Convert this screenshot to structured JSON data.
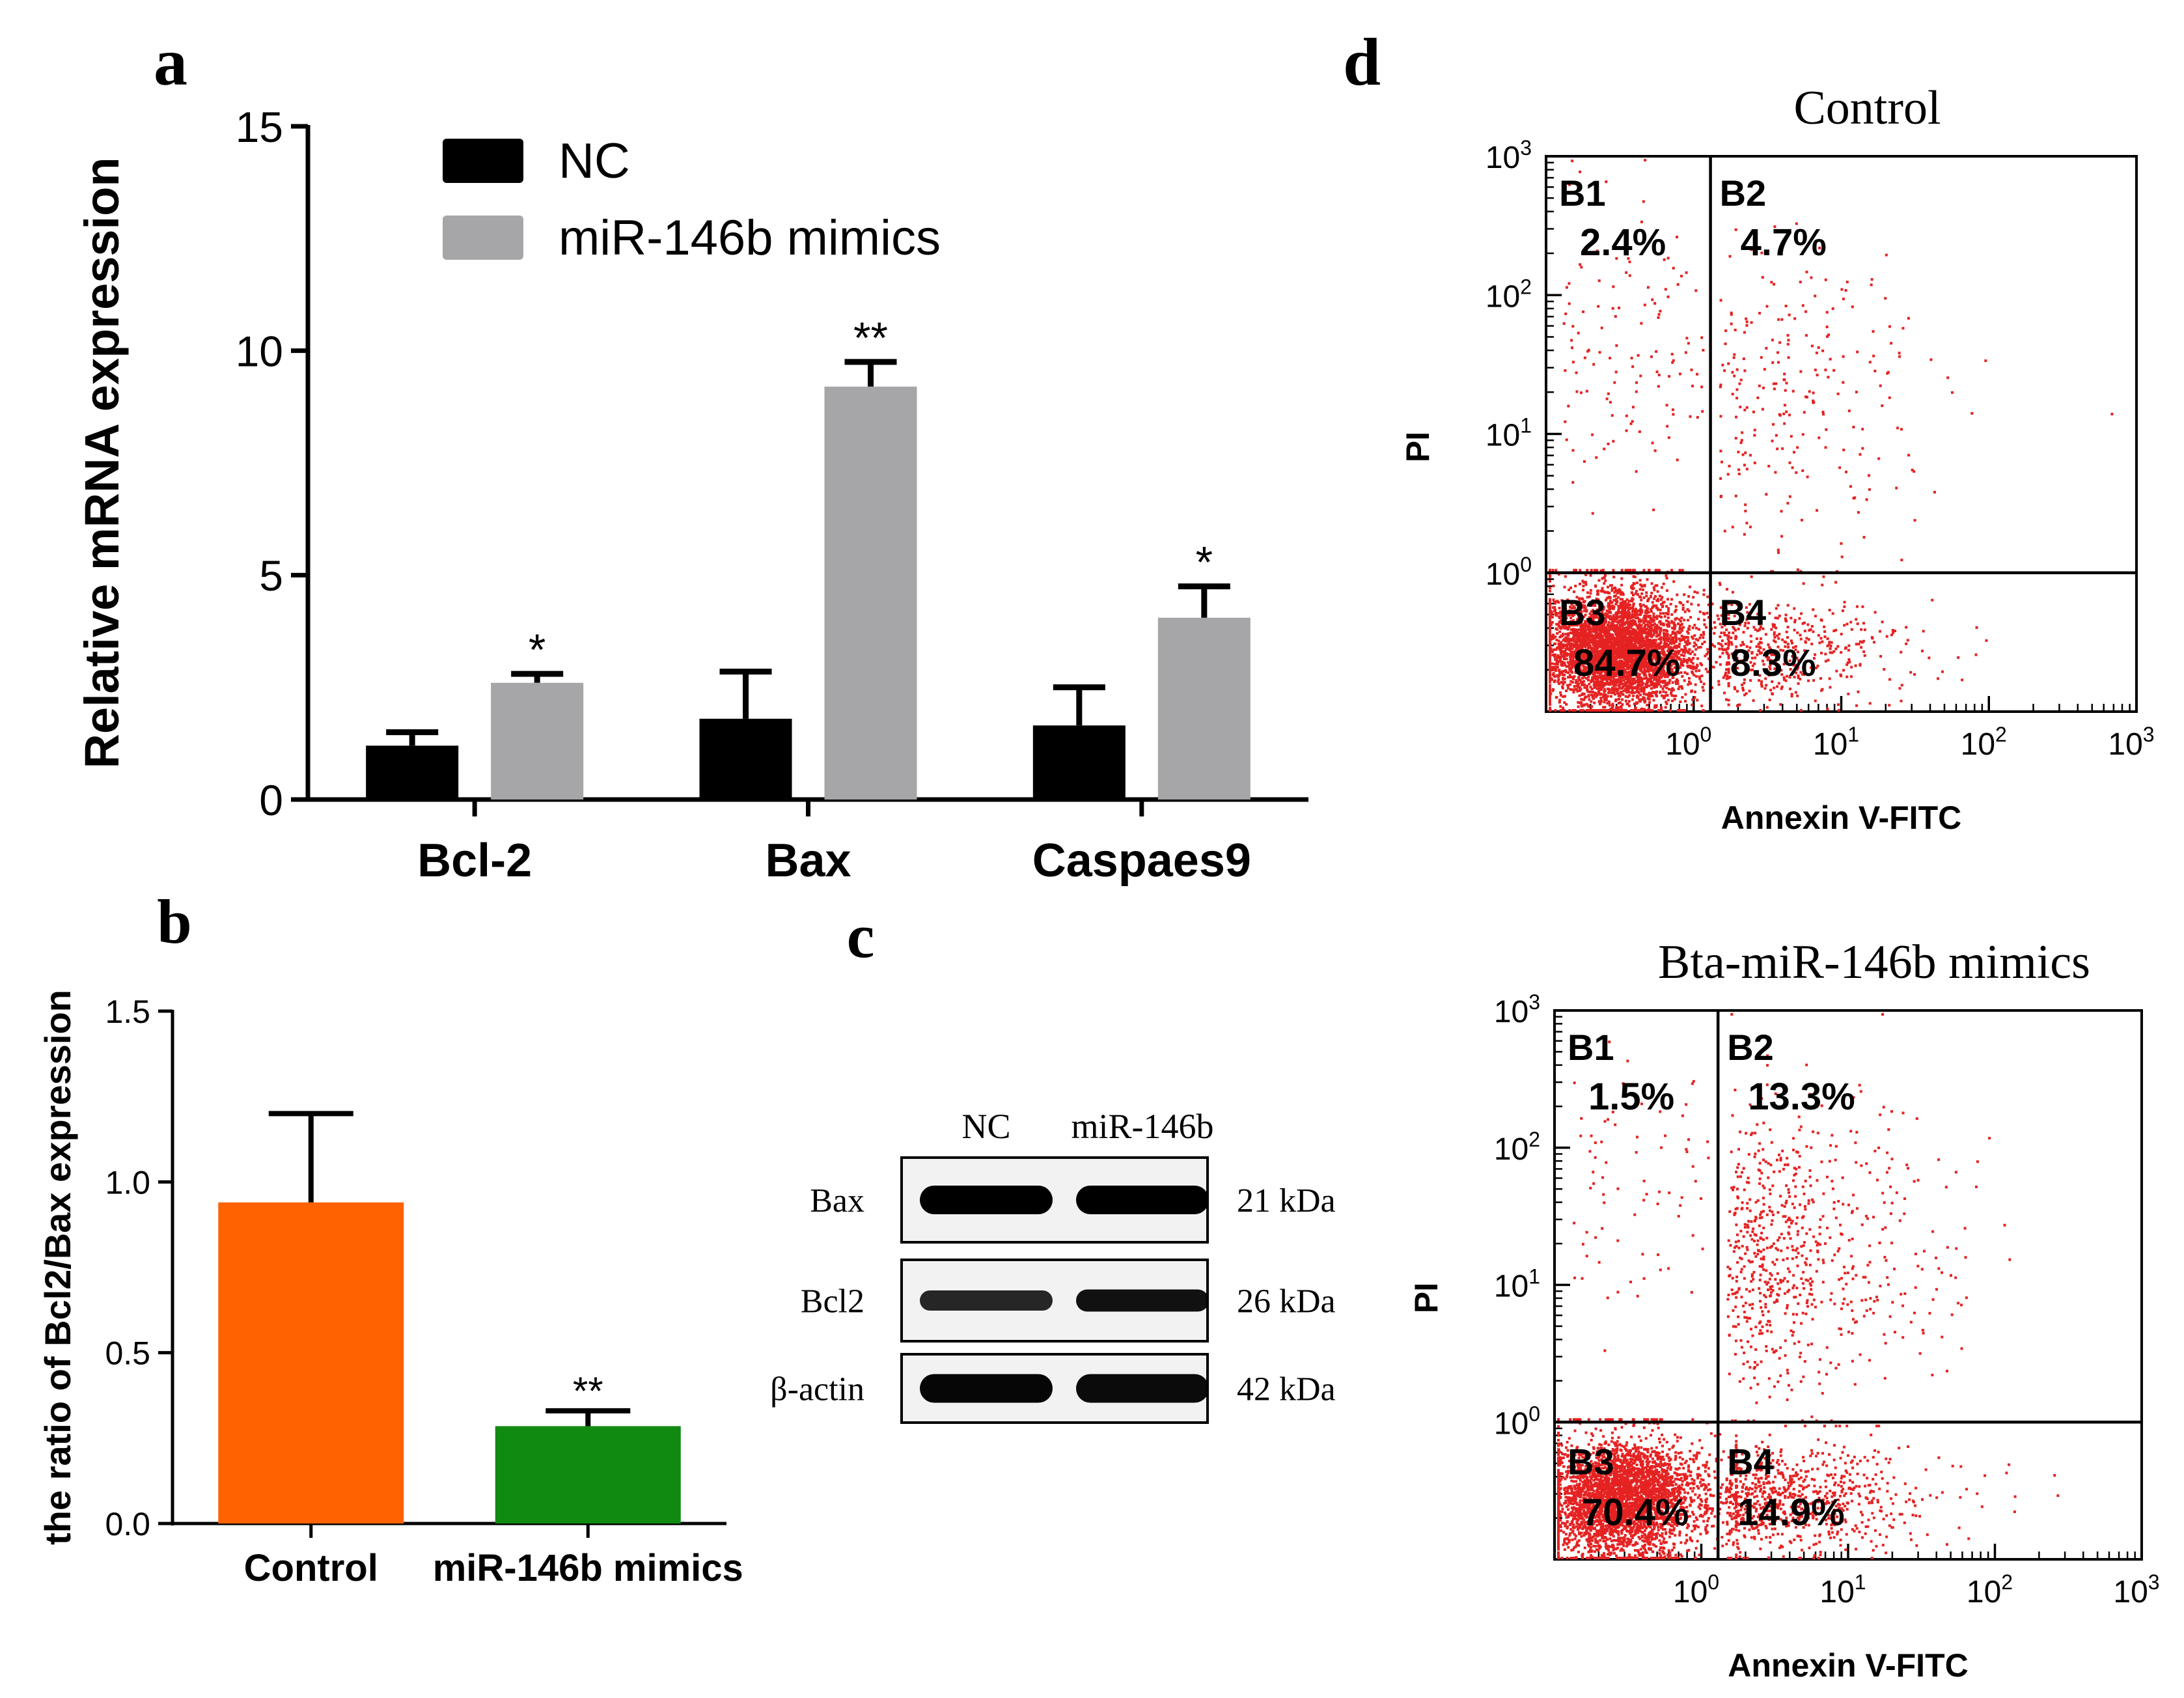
{
  "panels": {
    "a": {
      "label": "a"
    },
    "b": {
      "label": "b"
    },
    "c": {
      "label": "c"
    },
    "d": {
      "label": "d"
    }
  },
  "chart_data": [
    {
      "type": "bar",
      "panel": "a",
      "ylabel": "Relative mRNA expression",
      "xlabel": "",
      "ylim": [
        0,
        15
      ],
      "yticks": [
        "0",
        "5",
        "10",
        "15"
      ],
      "categories": [
        "Bcl-2",
        "Bax",
        "Caspaes9"
      ],
      "series": [
        {
          "name": "NC",
          "color": "#000000",
          "values": [
            1.2,
            1.8,
            1.65
          ],
          "errors": [
            0.3,
            1.05,
            0.85
          ],
          "significance": [
            "",
            "",
            ""
          ]
        },
        {
          "name": "miR-146b mimics",
          "color": "#a6a6a8",
          "values": [
            2.6,
            9.2,
            4.05
          ],
          "errors": [
            0.2,
            0.55,
            0.7
          ],
          "significance": [
            "*",
            "**",
            "*"
          ]
        }
      ],
      "legend_position": "top-left"
    },
    {
      "type": "bar",
      "panel": "b",
      "ylabel": "the ratio of Bcl2/Bax expression",
      "xlabel": "",
      "ylim": [
        0,
        1.5
      ],
      "yticks": [
        "0.0",
        "0.5",
        "1.0",
        "1.5"
      ],
      "categories": [
        "Control",
        "miR-146b mimics"
      ],
      "values": [
        0.94,
        0.285
      ],
      "errors": [
        0.26,
        0.045
      ],
      "colors": [
        "#ff6200",
        "#108a10"
      ],
      "significance": [
        "",
        "**"
      ]
    },
    {
      "type": "scatter",
      "panel": "d-top",
      "title": "Control",
      "xlabel": "Annexin V-FITC",
      "ylabel": "PI",
      "scale": "log",
      "xlim": [
        0.1,
        1000
      ],
      "ylim": [
        0.1,
        1000
      ],
      "ticks": [
        {
          "base": "10",
          "exp": "0"
        },
        {
          "base": "10",
          "exp": "1"
        },
        {
          "base": "10",
          "exp": "2"
        },
        {
          "base": "10",
          "exp": "3"
        }
      ],
      "gate_x": 1.3,
      "gate_y": 1.0,
      "quadrants": [
        {
          "name": "B1",
          "percent": "2.4%"
        },
        {
          "name": "B2",
          "percent": "4.7%"
        },
        {
          "name": "B3",
          "percent": "84.7%"
        },
        {
          "name": "B4",
          "percent": "8.3%"
        }
      ],
      "dot_color": "#e52222"
    },
    {
      "type": "scatter",
      "panel": "d-bottom",
      "title": "Bta-miR-146b mimics",
      "xlabel": "Annexin V-FITC",
      "ylabel": "PI",
      "scale": "log",
      "xlim": [
        0.1,
        1000
      ],
      "ylim": [
        0.1,
        1000
      ],
      "ticks": [
        {
          "base": "10",
          "exp": "0"
        },
        {
          "base": "10",
          "exp": "1"
        },
        {
          "base": "10",
          "exp": "2"
        },
        {
          "base": "10",
          "exp": "3"
        }
      ],
      "gate_x": 1.3,
      "gate_y": 1.0,
      "quadrants": [
        {
          "name": "B1",
          "percent": "1.5%"
        },
        {
          "name": "B2",
          "percent": "13.3%"
        },
        {
          "name": "B3",
          "percent": "70.4%"
        },
        {
          "name": "B4",
          "percent": "14.9%"
        }
      ],
      "dot_color": "#e52222"
    }
  ],
  "western_blot": {
    "lanes": [
      "NC",
      "miR-146b"
    ],
    "rows": [
      {
        "protein": "Bax",
        "size": "21 kDa",
        "intensity": [
          1.0,
          1.0
        ]
      },
      {
        "protein": "Bcl2",
        "size": "26 kDa",
        "intensity": [
          0.65,
          0.85
        ]
      },
      {
        "protein": "β-actin",
        "size": "42 kDa",
        "intensity": [
          0.95,
          0.9
        ]
      }
    ]
  }
}
